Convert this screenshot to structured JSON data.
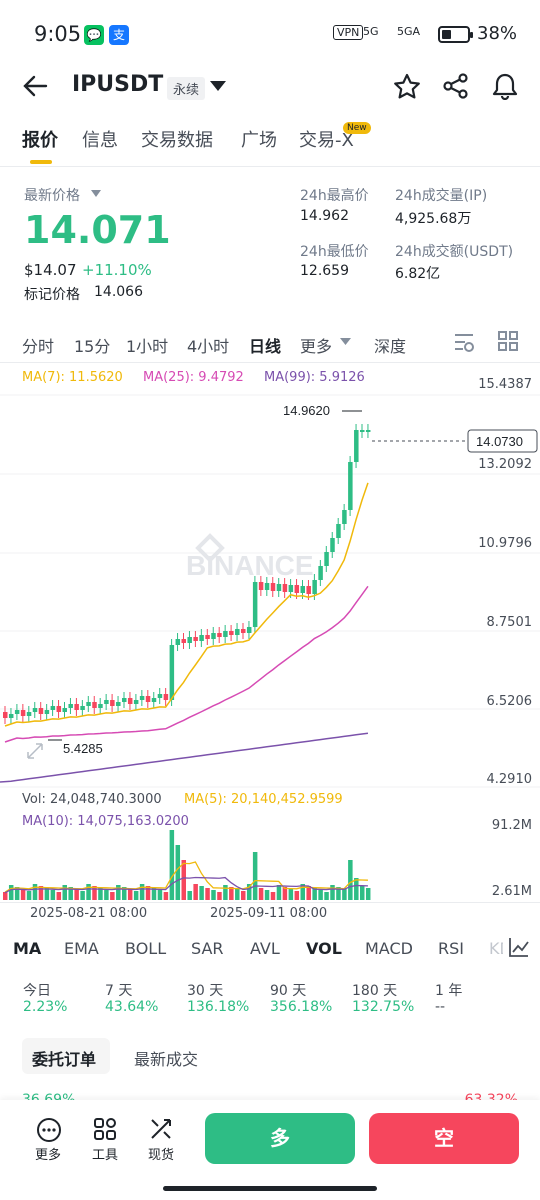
{
  "status": {
    "time": "9:05",
    "wechat": "💬",
    "alipay": "支",
    "vpn": "VPN",
    "net1": "5G",
    "net2": "5GA",
    "battery": "38%"
  },
  "header": {
    "symbol": "IPUSDT",
    "type": "永续"
  },
  "tabs": [
    "报价",
    "信息",
    "交易数据",
    "广场",
    "交易-X"
  ],
  "tab_badge": "New",
  "price": {
    "label": "最新价格",
    "last": "14.071",
    "usd": "$14.07",
    "change": "+11.10%",
    "mark_label": "标记价格",
    "mark": "14.066"
  },
  "stats": {
    "high_label": "24h最高价",
    "high": "14.962",
    "low_label": "24h最低价",
    "low": "12.659",
    "vol_label": "24h成交量(IP)",
    "vol": "4,925.68万",
    "amt_label": "24h成交额(USDT)",
    "amt": "6.82亿"
  },
  "intervals": [
    "分时",
    "15分",
    "1小时",
    "4小时",
    "日线",
    "更多",
    "深度"
  ],
  "ma": {
    "ma7": "MA(7): 11.5620",
    "ma25": "MA(25): 9.4792",
    "ma99": "MA(99): 5.9126"
  },
  "axis": [
    "15.4387",
    "13.2092",
    "10.9796",
    "8.7501",
    "6.5206",
    "4.2910"
  ],
  "marks": {
    "high": "14.9620",
    "low": "5.4285",
    "current": "14.0730"
  },
  "watermark": "BINANCE",
  "vol": {
    "vol": "Vol: 24,048,740.3000",
    "ma5": "MA(5): 20,140,452.9599",
    "ma10": "MA(10): 14,075,163.0200",
    "axis_top": "91.2M",
    "axis_bot": "2.61M"
  },
  "dates": [
    "2025-08-21 08:00",
    "2025-09-11 08:00"
  ],
  "indicators": [
    "MA",
    "EMA",
    "BOLL",
    "SAR",
    "AVL",
    "VOL",
    "MACD",
    "RSI",
    "KD"
  ],
  "perf": [
    {
      "h": "今日",
      "v": "2.23%"
    },
    {
      "h": "7 天",
      "v": "43.64%"
    },
    {
      "h": "30 天",
      "v": "136.18%"
    },
    {
      "h": "90 天",
      "v": "356.18%"
    },
    {
      "h": "180 天",
      "v": "132.75%"
    },
    {
      "h": "1 年",
      "v": "--"
    }
  ],
  "orders": {
    "tab1": "委托订单",
    "tab2": "最新成交",
    "l": "36.69%",
    "r": "63.32%"
  },
  "bottom": {
    "more": "更多",
    "tools": "工具",
    "spot": "现货",
    "long": "多",
    "short": "空"
  },
  "colors": {
    "up": "#2ebd85",
    "down": "#f6465d",
    "ma7": "#f0b90b",
    "ma25": "#d64bb4",
    "ma99": "#7b52ab"
  }
}
